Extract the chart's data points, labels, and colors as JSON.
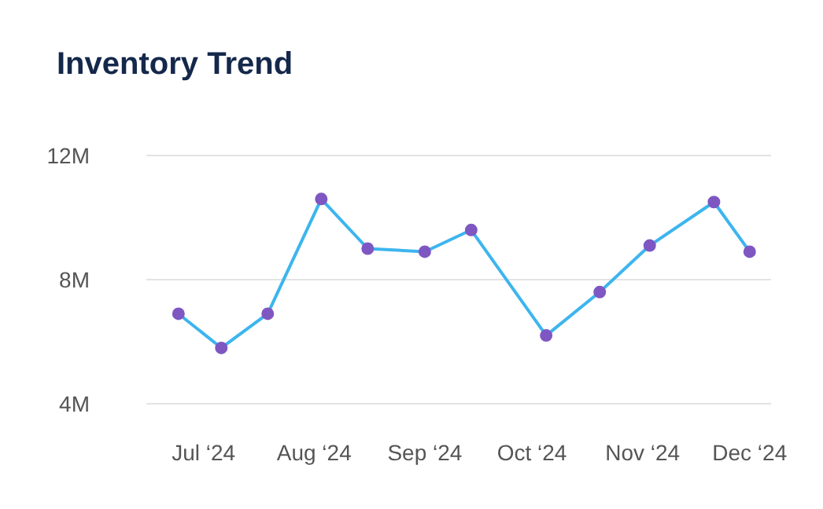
{
  "chart_data": {
    "type": "line",
    "title": "Inventory Trend",
    "x": [
      "2024-06-24",
      "2024-07-06",
      "2024-07-19",
      "2024-08-03",
      "2024-08-16",
      "2024-09-01",
      "2024-09-14",
      "2024-10-05",
      "2024-10-20",
      "2024-11-03",
      "2024-11-21",
      "2024-12-01"
    ],
    "series": [
      {
        "color": "#3db5ee",
        "values": [
          6900000,
          5800000,
          6900000,
          10600000,
          9000000,
          8900000,
          9600000,
          6200000,
          7600000,
          9100000,
          10500000,
          8900000
        ]
      }
    ],
    "xlim": [
      "2024-06-15",
      "2024-12-07"
    ],
    "xticks": [
      {
        "value": "2024-07-01",
        "label": "Jul ‘24"
      },
      {
        "value": "2024-08-01",
        "label": "Aug ‘24"
      },
      {
        "value": "2024-09-01",
        "label": "Sep ‘24"
      },
      {
        "value": "2024-10-01",
        "label": "Oct ‘24"
      },
      {
        "value": "2024-11-01",
        "label": "Nov ‘24"
      },
      {
        "value": "2024-12-01",
        "label": "Dec ‘24"
      }
    ],
    "ylim": [
      4000000,
      12000000
    ],
    "yticks": [
      {
        "value": 4000000,
        "label": "4M"
      },
      {
        "value": 8000000,
        "label": "8M"
      },
      {
        "value": 12000000,
        "label": "12M"
      }
    ],
    "grid": "y",
    "marker": "circle",
    "legend": false
  }
}
